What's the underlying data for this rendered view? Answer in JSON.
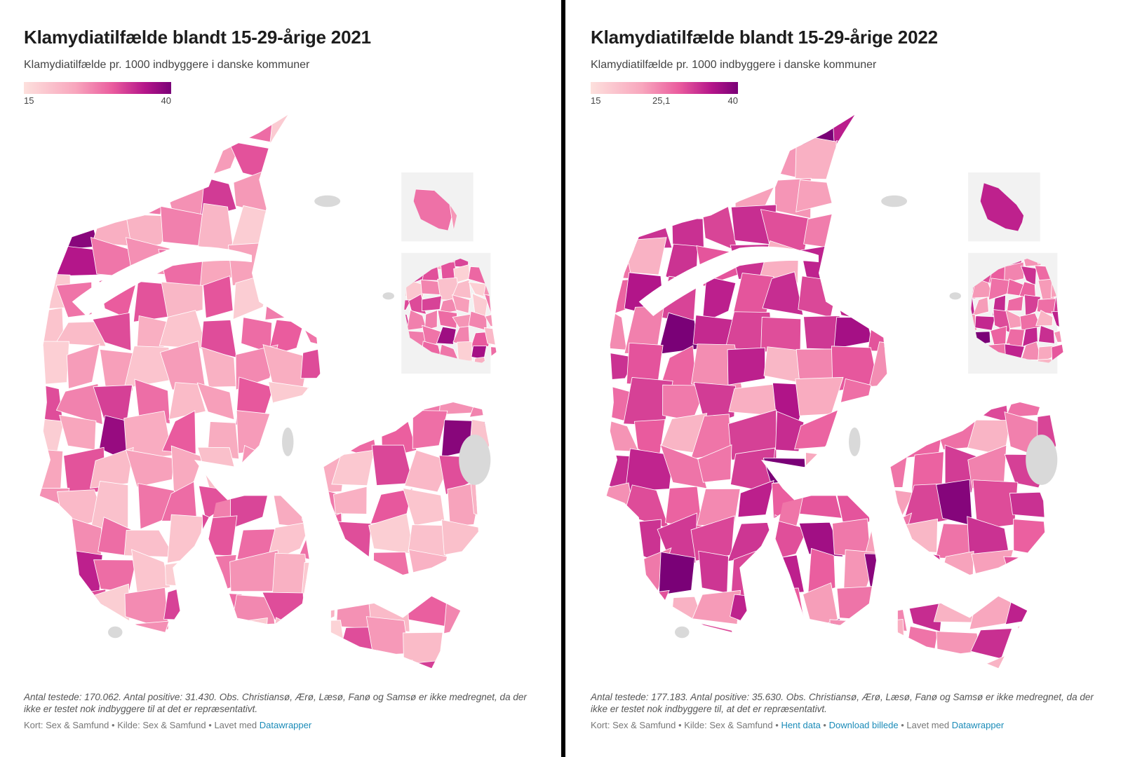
{
  "panels": [
    {
      "title": "Klamydiatilfælde blandt 15-29-årige 2021",
      "subtitle": "Klamydiatilfælde pr. 1000 indbyggere i danske kommuner",
      "notes": "Antal testede: 170.062. Antal positive: 31.430. Obs. Christiansø, Ærø, Læsø, Fanø og Samsø er ikke medregnet, da der ikke er testet nok indbyggere til at det er repræsentativt.",
      "byline": {
        "map": "Kort: Sex & Samfund",
        "sep1": " • ",
        "source": "Kilde: Sex & Samfund",
        "sep2": " • ",
        "made": "Lavet med ",
        "made_link": "Datawrapper"
      }
    },
    {
      "title": "Klamydiatilfælde blandt 15-29-årige 2022",
      "subtitle": "Klamydiatilfælde pr. 1000 indbyggere i danske kommuner",
      "notes": "Antal testede: 177.183. Antal positive: 35.630. Obs. Christiansø, Ærø, Læsø, Fanø og Samsø er ikke medregnet, da der ikke er testet nok indbyggere til, at det er repræsentativt.",
      "byline": {
        "map": "Kort: Sex & Samfund",
        "sep1": " • ",
        "source": "Kilde: Sex & Samfund",
        "sep2": " • ",
        "link1": "Hent data",
        "sep3": " • ",
        "link2": "Download billede",
        "sep4": " • ",
        "made": "Lavet med ",
        "made_link": "Datawrapper"
      }
    }
  ],
  "chart_data": [
    {
      "type": "choropleth",
      "title": "Klamydiatilfælde blandt 15-29-årige 2021",
      "legend": {
        "min": "15",
        "max": "40"
      },
      "color_scale": [
        "#fde0dd",
        "#f8a6bd",
        "#ea5c9e",
        "#b5168a",
        "#7a0177"
      ],
      "missing_color": "#d9d9d9"
    },
    {
      "type": "choropleth",
      "title": "Klamydiatilfælde blandt 15-29-årige 2022",
      "legend": {
        "min": "15",
        "mid": "25,1",
        "max": "40"
      },
      "color_scale": [
        "#fde0dd",
        "#f8a6bd",
        "#ea5c9e",
        "#b5168a",
        "#7a0177"
      ],
      "missing_color": "#d9d9d9"
    }
  ]
}
